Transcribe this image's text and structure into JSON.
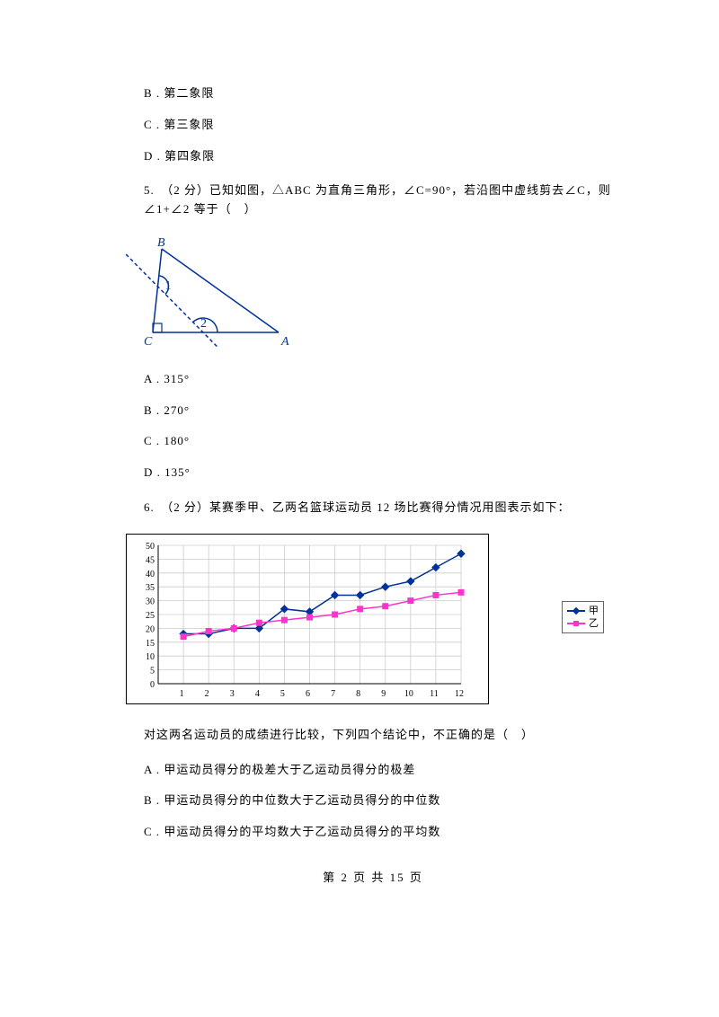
{
  "options_top": [
    "B . 第二象限",
    "C . 第三象限",
    "D . 第四象限"
  ],
  "q5": {
    "text": "5.　（2 分）已知如图，△ABC 为直角三角形，∠C=90°，若沿图中虚线剪去∠C，则∠1+∠2 等于（　）",
    "figure": {
      "labels": {
        "B": "B",
        "C": "C",
        "A": "A",
        "one": "1",
        "two": "2"
      },
      "line_color": "#003399",
      "text_color": "#003399"
    },
    "options": [
      "A . 315°",
      "B . 270°",
      "C . 180°",
      "D . 135°"
    ]
  },
  "q6": {
    "text": "6.　（2 分）某赛季甲、乙两名篮球运动员 12 场比赛得分情况用图表示如下：",
    "chart": {
      "x_values": [
        1,
        2,
        3,
        4,
        5,
        6,
        7,
        8,
        9,
        10,
        11,
        12
      ],
      "y_ticks": [
        0,
        5,
        10,
        15,
        20,
        25,
        30,
        35,
        40,
        45,
        50
      ],
      "series": [
        {
          "name": "甲",
          "color": "#003399",
          "marker": "diamond",
          "data": [
            18,
            18,
            20,
            20,
            27,
            26,
            32,
            32,
            35,
            37,
            42,
            47
          ]
        },
        {
          "name": "乙",
          "color": "#ff33cc",
          "marker": "square",
          "data": [
            17,
            19,
            20,
            22,
            23,
            24,
            25,
            27,
            28,
            30,
            32,
            33
          ]
        }
      ],
      "grid_color": "#cccccc",
      "axis_color": "#000000",
      "background": "#ffffff"
    },
    "after_text": "对这两名运动员的成绩进行比较，下列四个结论中，不正确的是（　）",
    "options": [
      "A . 甲运动员得分的极差大于乙运动员得分的极差",
      "B . 甲运动员得分的中位数大于乙运动员得分的中位数",
      "C . 甲运动员得分的平均数大于乙运动员得分的平均数"
    ]
  },
  "footer": "第 2 页 共 15 页"
}
